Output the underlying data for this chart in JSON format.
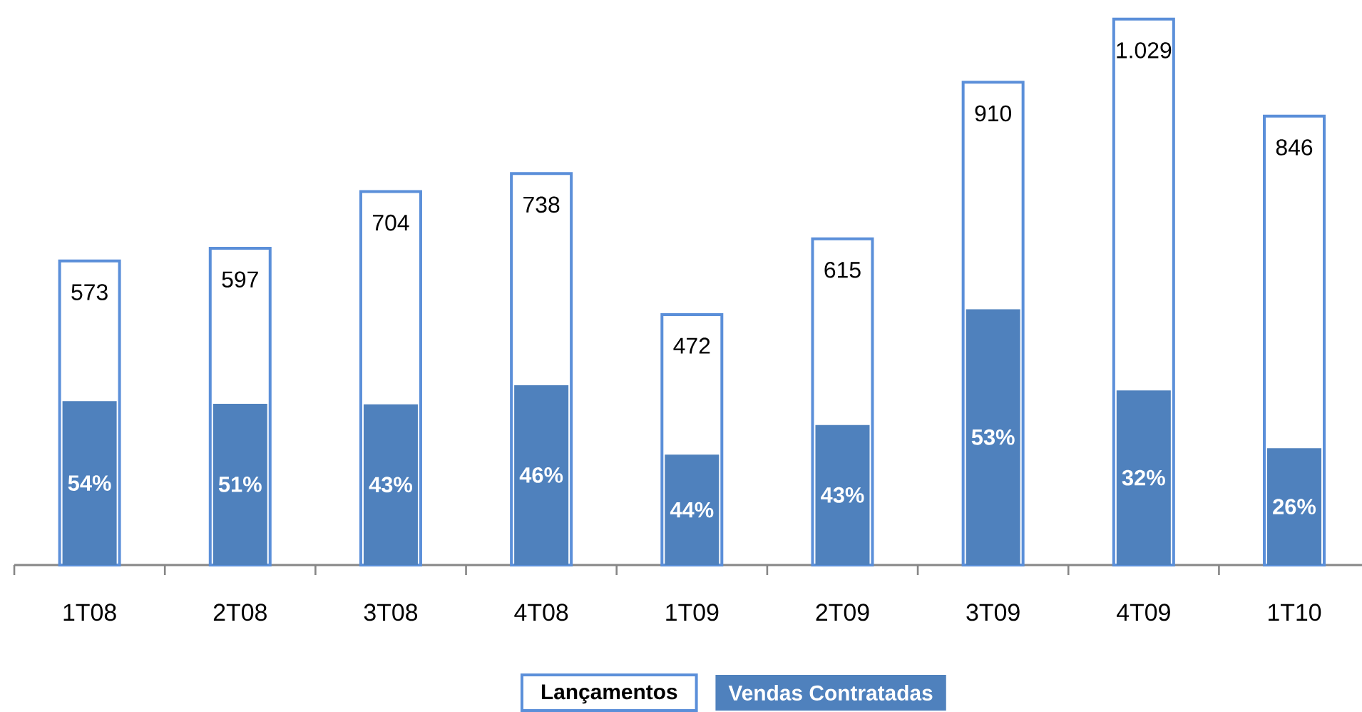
{
  "chart_data": {
    "type": "bar",
    "categories": [
      "1T08",
      "2T08",
      "3T08",
      "4T08",
      "1T09",
      "2T09",
      "3T09",
      "4T09",
      "1T10"
    ],
    "series": [
      {
        "name": "Lançamentos",
        "color": "#5b8fd9",
        "values": [
          573,
          597,
          704,
          738,
          472,
          615,
          910,
          1029,
          846
        ],
        "value_labels": [
          "573",
          "597",
          "704",
          "738",
          "472",
          "615",
          "910",
          "1.029",
          "846"
        ]
      },
      {
        "name": "Vendas Contratadas",
        "color": "#4f81bd",
        "values": [
          309,
          304,
          303,
          339,
          208,
          264,
          482,
          329,
          220
        ]
      }
    ],
    "annotations": [
      "54%",
      "51%",
      "43%",
      "46%",
      "44%",
      "43%",
      "53%",
      "32%",
      "26%"
    ],
    "legend": "bottom"
  }
}
